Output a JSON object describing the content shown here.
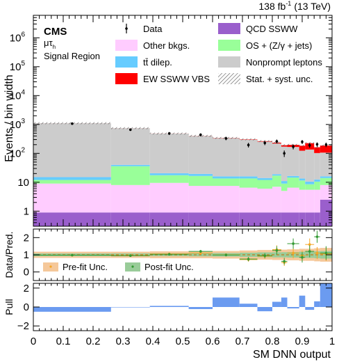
{
  "header": {
    "lumi_value": "138 fb",
    "lumi_exp": "-1",
    "lumi_energy": "(13 TeV)",
    "experiment": "CMS",
    "channel": "μτ",
    "channel_sub": "h",
    "region": "Signal Region"
  },
  "legend": [
    {
      "label": "Data",
      "kind": "marker"
    },
    {
      "label": "QCD SSWW",
      "kind": "box",
      "color": "#9a5fcc"
    },
    {
      "label": "Other bkgs.",
      "kind": "box",
      "color": "#ffccff"
    },
    {
      "label": "OS + (Z/γ + jets)",
      "kind": "box",
      "color": "#99ff99"
    },
    {
      "label": "tt̄ dilep.",
      "kind": "box",
      "color": "#66ccff"
    },
    {
      "label": "Nonprompt leptons",
      "kind": "box",
      "color": "#cccccc"
    },
    {
      "label": "EW SSWW VBS",
      "kind": "box",
      "color": "#ff0000"
    },
    {
      "label": "Stat. + syst. unc.",
      "kind": "hatch"
    }
  ],
  "ratio_legend": [
    {
      "label": "Pre-fit Unc.",
      "color": "#f5c89a",
      "marker": "#f5a623"
    },
    {
      "label": "Post-fit Unc.",
      "color": "#99cc99",
      "marker": "#339933"
    }
  ],
  "axes": {
    "main_ylabel": "Events / bin width",
    "ratio_ylabel": "Data/Pred.",
    "pull_ylabel": "Pull",
    "xlabel": "SM DNN output"
  },
  "chart_data": [
    {
      "type": "bar",
      "stacked": true,
      "yscale": "log",
      "ylim": [
        0.3,
        6000000
      ],
      "xlim": [
        0,
        1
      ],
      "bin_edges": [
        0,
        0.26,
        0.39,
        0.52,
        0.6,
        0.69,
        0.75,
        0.8,
        0.83,
        0.85,
        0.89,
        0.91,
        0.94,
        0.96,
        1.0
      ],
      "y_ticks": [
        {
          "v": 1,
          "label": "1"
        },
        {
          "v": 10,
          "label": "10"
        },
        {
          "v": 100,
          "label": "10",
          "exp": "2"
        },
        {
          "v": 1000,
          "label": "10",
          "exp": "3"
        },
        {
          "v": 10000,
          "label": "10",
          "exp": "4"
        },
        {
          "v": 100000,
          "label": "10",
          "exp": "5"
        },
        {
          "v": 1000000,
          "label": "10",
          "exp": "6"
        }
      ],
      "series": [
        {
          "name": "QCD SSWW",
          "color": "#9a5fcc",
          "values": [
            0.9,
            0.9,
            0.9,
            0.9,
            0.9,
            0.9,
            0.9,
            0.9,
            0.9,
            0.9,
            0.9,
            0.9,
            0.9,
            2.5
          ]
        },
        {
          "name": "Other bkgs.",
          "color": "#ffccff",
          "values": [
            8.1,
            7.1,
            8.6,
            6.6,
            6.6,
            5.6,
            5.1,
            6.1,
            4.1,
            5.6,
            4.6,
            4.6,
            4.6,
            5.5
          ]
        },
        {
          "name": "OS + (Z/γ + jets)",
          "color": "#99ff99",
          "values": [
            3,
            28,
            8,
            9,
            6,
            7,
            6,
            10,
            4,
            8,
            6,
            3,
            5,
            6
          ]
        },
        {
          "name": "tt̄ dilep.",
          "color": "#66ccff",
          "values": [
            3,
            4,
            3,
            3,
            2.5,
            2.5,
            2,
            2,
            2,
            2,
            2,
            2,
            2,
            2
          ]
        },
        {
          "name": "Nonprompt leptons",
          "color": "#cccccc",
          "values": [
            1085,
            700,
            460,
            380,
            320,
            280,
            240,
            200,
            160,
            150,
            110,
            125,
            90,
            90
          ]
        },
        {
          "name": "EW SSWW VBS",
          "color": "#ff0000",
          "values": [
            2,
            2,
            2,
            3,
            5,
            8,
            10,
            15,
            20,
            30,
            60,
            90,
            60,
            80
          ]
        }
      ],
      "data_points": {
        "x": [
          0.13,
          0.325,
          0.455,
          0.56,
          0.645,
          0.72,
          0.775,
          0.815,
          0.84,
          0.87,
          0.9,
          0.925,
          0.95,
          0.98
        ],
        "y": [
          1070,
          660,
          490,
          440,
          330,
          195,
          230,
          260,
          100,
          170,
          250,
          190,
          205,
          200
        ],
        "err": [
          33,
          26,
          22,
          21,
          18,
          14,
          15,
          16,
          10,
          13,
          16,
          14,
          14,
          14
        ]
      }
    },
    {
      "type": "scatter",
      "ylim": [
        -0.5,
        2.5
      ],
      "y_ticks": [
        0,
        1,
        2
      ],
      "reference": 1,
      "x": [
        0.13,
        0.325,
        0.455,
        0.56,
        0.645,
        0.72,
        0.775,
        0.815,
        0.84,
        0.87,
        0.9,
        0.925,
        0.95,
        0.98
      ],
      "prefit": [
        0.98,
        0.96,
        1.05,
        1.1,
        1.0,
        0.72,
        0.92,
        1.3,
        0.55,
        1.1,
        0.95,
        1.6,
        1.1,
        1.05
      ],
      "postfit": [
        0.98,
        0.95,
        1.03,
        1.2,
        0.99,
        0.75,
        0.95,
        1.25,
        0.62,
        1.65,
        0.85,
        1.2,
        2.05,
        1.1
      ],
      "err": [
        0.05,
        0.05,
        0.06,
        0.08,
        0.08,
        0.12,
        0.15,
        0.25,
        0.2,
        0.3,
        0.3,
        0.35,
        0.35,
        0.4
      ],
      "band_prefit": [
        0.18,
        0.18,
        0.2,
        0.2,
        0.22,
        0.25,
        0.28,
        0.3,
        0.3,
        0.32,
        0.35,
        0.35,
        0.38,
        0.4
      ],
      "band_postfit": [
        0.08,
        0.08,
        0.08,
        0.09,
        0.1,
        0.12,
        0.14,
        0.15,
        0.15,
        0.16,
        0.18,
        0.18,
        0.2,
        0.22
      ]
    },
    {
      "type": "bar",
      "ylim": [
        -2.5,
        2.5
      ],
      "y_ticks": [
        -2,
        0,
        2
      ],
      "color": "#6b9bf0",
      "values": [
        -0.5,
        0.0,
        0.12,
        -0.22,
        1.0,
        0.35,
        -0.45,
        0.55,
        1.0,
        -0.15,
        1.2,
        -0.3,
        0.6,
        2.5
      ]
    }
  ],
  "x_ticks": [
    {
      "v": 0,
      "label": "0"
    },
    {
      "v": 0.1,
      "label": "0.1"
    },
    {
      "v": 0.2,
      "label": "0.2"
    },
    {
      "v": 0.3,
      "label": "0.3"
    },
    {
      "v": 0.4,
      "label": "0.4"
    },
    {
      "v": 0.5,
      "label": "0.5"
    },
    {
      "v": 0.6,
      "label": "0.6"
    },
    {
      "v": 0.7,
      "label": "0.7"
    },
    {
      "v": 0.8,
      "label": "0.8"
    },
    {
      "v": 0.9,
      "label": "0.9"
    },
    {
      "v": 1,
      "label": "1"
    }
  ]
}
